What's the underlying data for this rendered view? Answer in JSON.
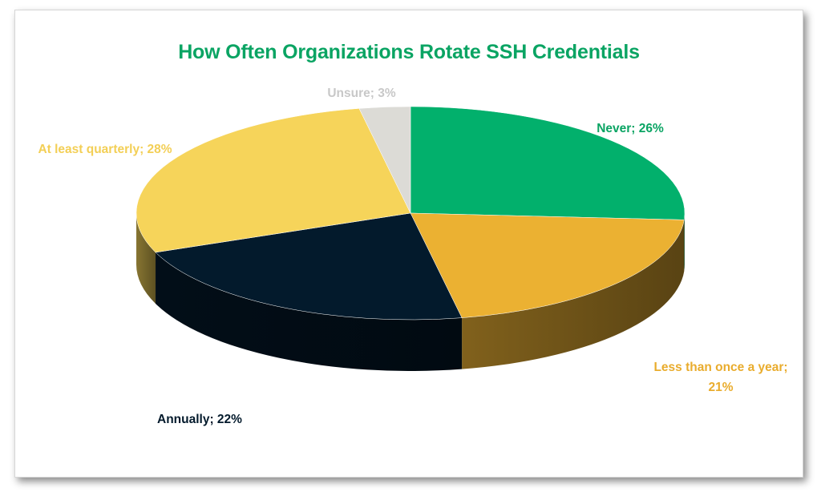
{
  "chart_data": {
    "type": "pie",
    "title": "How Often Organizations Rotate SSH Credentials",
    "title_color": "#0aa463",
    "slices": [
      {
        "name": "Never",
        "value": 26,
        "label": "Never; 26%",
        "color": "#02b06c",
        "label_color": "#0aa463"
      },
      {
        "name": "Less than once a year",
        "value": 21,
        "label_lines": [
          "Less than once a year;",
          "21%"
        ],
        "color": "#ebb132",
        "label_color": "#e9ac2d"
      },
      {
        "name": "Annually",
        "value": 22,
        "label": "Annually; 22%",
        "color": "#031a2c",
        "label_color": "#031a2c"
      },
      {
        "name": "At least quarterly",
        "value": 28,
        "label": "At least quarterly; 28%",
        "color": "#f6d45a",
        "label_color": "#f3cf56"
      },
      {
        "name": "Unsure",
        "value": 3,
        "label": "Unsure; 3%",
        "color": "#dcdbd6",
        "label_color": "#c8c8c8"
      }
    ],
    "legend": "none",
    "style": "3d-pie"
  }
}
